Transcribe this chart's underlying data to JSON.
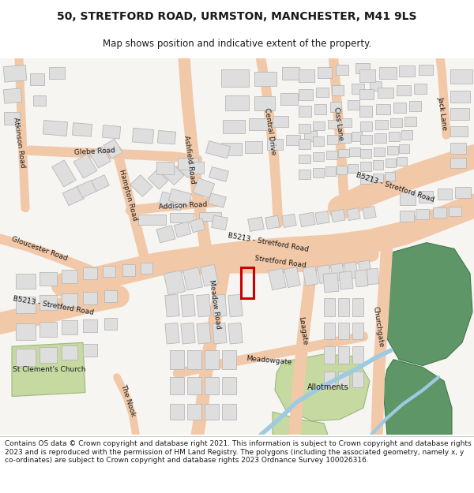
{
  "title_line1": "50, STRETFORD ROAD, URMSTON, MANCHESTER, M41 9LS",
  "title_line2": "Map shows position and indicative extent of the property.",
  "footer_text": "Contains OS data © Crown copyright and database right 2021. This information is subject to Crown copyright and database rights 2023 and is reproduced with the permission of HM Land Registry. The polygons (including the associated geometry, namely x, y co-ordinates) are subject to Crown copyright and database rights 2023 Ordnance Survey 100026316.",
  "map_bg": "#f7f5f2",
  "road_fill": "#f2c9a8",
  "road_edge": "#e0a882",
  "bld_fill": "#dedede",
  "bld_edge": "#b8b8b8",
  "green_light": "#c5d9a0",
  "green_dark": "#5e9668",
  "water": "#9ecae1",
  "red": "#cc0000",
  "white": "#ffffff",
  "text_dark": "#1a1a1a",
  "text_gray": "#444444",
  "title_fs": 10,
  "subtitle_fs": 8.5,
  "footer_fs": 6.5,
  "label_fs": 6.5
}
